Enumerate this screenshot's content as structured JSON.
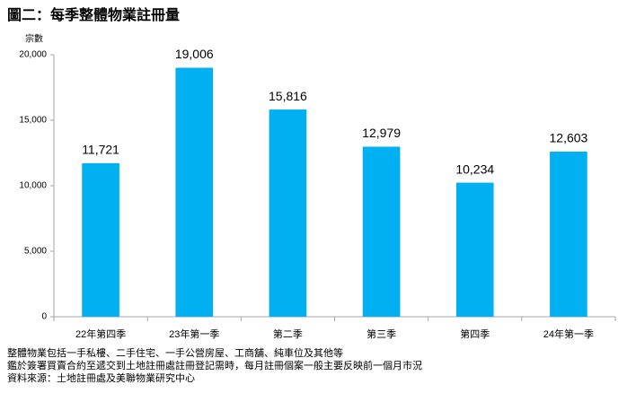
{
  "chart_data": {
    "type": "bar",
    "title": "圖二：每季整體物業註冊量",
    "y_label": "宗數",
    "categories": [
      "22年第四季",
      "23年第一季",
      "第二季",
      "第三季",
      "第四季",
      "24年第一季"
    ],
    "values": [
      11721,
      19006,
      15816,
      12979,
      10234,
      12603
    ],
    "value_labels": [
      "11,721",
      "19,006",
      "15,816",
      "12,979",
      "10,234",
      "12,603"
    ],
    "color": "#00b0f0",
    "ylim": [
      0,
      20000
    ],
    "yticks": [
      0,
      {
        "value": 5000,
        "label": "5,000"
      },
      {
        "value": 10000,
        "label": "10,000"
      },
      {
        "value": 15000,
        "label": "15,000"
      },
      {
        "value": 20000,
        "label": "20,000"
      }
    ],
    "grid": false,
    "notes": [
      "整體物業包括一手私樓、二手住宅、一手公營房屋、工商舖、純車位及其他等",
      "鑑於簽署買賣合約至遞交到土地註冊處註冊登記需時，每月註冊個案一般主要反映前一個月市況",
      "資料來源：土地註冊處及美聯物業研究中心"
    ]
  }
}
